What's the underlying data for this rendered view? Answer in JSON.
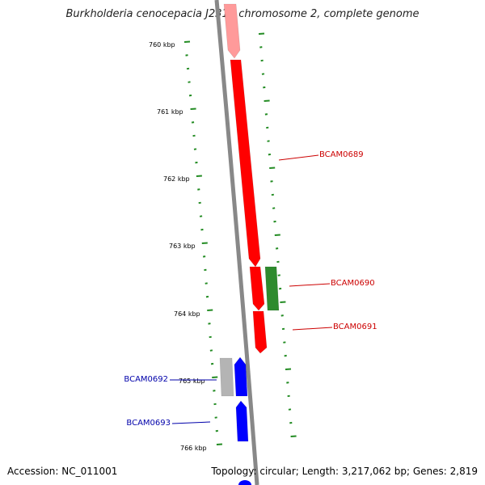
{
  "title": "Burkholderia cenocepacia J2315 chromosome 2, complete genome",
  "footer": {
    "accession": "Accession: NC_011001",
    "summary": "Topology: circular; Length: 3,217,062 bp; Genes: 2,819"
  },
  "colors": {
    "backbone": "#888888",
    "tick": "#228b22",
    "forward_gene": "#ff0000",
    "reverse_gene": "#0000ff",
    "rna_gene": "#2e8b2e",
    "pseudo_gene": "#b4b4b4",
    "forward_label": "#cc0000",
    "reverse_label": "#0000aa"
  },
  "kbp_labels": [
    "760 kbp",
    "761 kbp",
    "762 kbp",
    "763 kbp",
    "764 kbp",
    "765 kbp",
    "766 kbp"
  ],
  "gene_labels": [
    {
      "text": "BCAM0689",
      "strand": "forward"
    },
    {
      "text": "BCAM0690",
      "strand": "forward"
    },
    {
      "text": "BCAM0691",
      "strand": "forward"
    },
    {
      "text": "BCAM0692",
      "strand": "reverse"
    },
    {
      "text": "BCAM0693",
      "strand": "reverse"
    }
  ]
}
